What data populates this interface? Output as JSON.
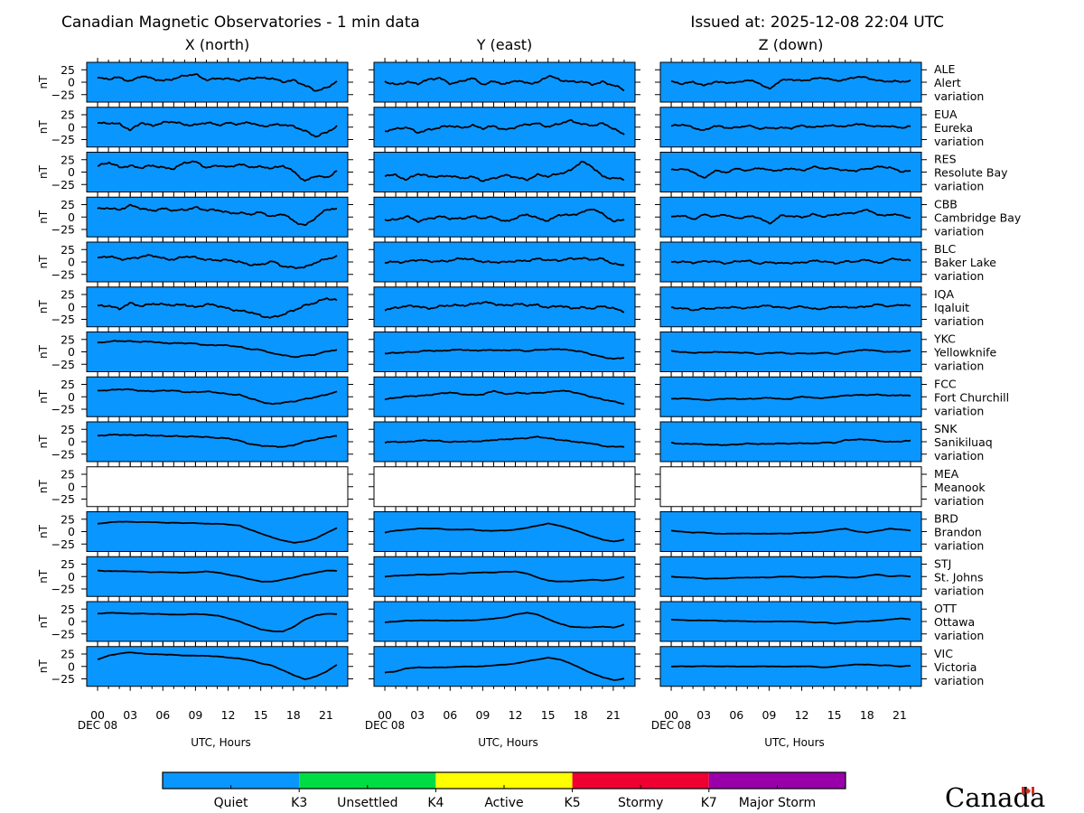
{
  "title_left": "Canadian Magnetic Observatories - 1 min data",
  "title_right": "Issued at: 2025-12-08 22:04 UTC",
  "columns": [
    "X (north)",
    "Y (east)",
    "Z (down)"
  ],
  "y_tick_labels": [
    "25",
    "0",
    "−25"
  ],
  "y_unit": "nT",
  "x_tick_labels": [
    "00",
    "03",
    "06",
    "09",
    "12",
    "15",
    "18",
    "21"
  ],
  "x_date_label": "DEC 08",
  "x_axis_label": "UTC, Hours",
  "variation_word": "variation",
  "colors": {
    "quiet": "#0a96ff",
    "unsettled": "#00dd44",
    "active": "#ffff00",
    "stormy": "#ee0033",
    "major_storm": "#9900aa",
    "trace": "#000000"
  },
  "legend": {
    "segments": [
      {
        "label": "Quiet",
        "color": "#0a96ff"
      },
      {
        "label": "Unsettled",
        "color": "#00dd44"
      },
      {
        "label": "Active",
        "color": "#ffff00"
      },
      {
        "label": "Stormy",
        "color": "#ee0033"
      },
      {
        "label": "Major Storm",
        "color": "#9900aa"
      }
    ],
    "thresholds": [
      "K3",
      "K4",
      "K5",
      "K7"
    ]
  },
  "logo_text": "Canada",
  "chart_data": {
    "type": "line",
    "x_unit": "UTC hours",
    "xlim": [
      -1,
      23
    ],
    "ylim": [
      -40,
      40
    ],
    "yticks": [
      25,
      0,
      -25
    ],
    "data_end_hour": 22.07,
    "stations": [
      {
        "code": "ALE",
        "name": "Alert",
        "status": "quiet",
        "x_nt": [
          8,
          5,
          10,
          3,
          12,
          6,
          4,
          8,
          12,
          15,
          6,
          8,
          5,
          4,
          10,
          8,
          6,
          2,
          5,
          -8,
          -18,
          -10,
          4
        ],
        "y_nt": [
          0,
          -5,
          2,
          -4,
          4,
          10,
          -2,
          0,
          8,
          -3,
          2,
          -6,
          4,
          0,
          -2,
          12,
          6,
          2,
          0,
          -5,
          2,
          -6,
          -18
        ],
        "z_nt": [
          2,
          -2,
          0,
          -8,
          2,
          0,
          -2,
          4,
          0,
          -14,
          2,
          6,
          4,
          6,
          8,
          4,
          6,
          10,
          8,
          4,
          2,
          0,
          2
        ]
      },
      {
        "code": "EUA",
        "name": "Eureka",
        "status": "quiet",
        "x_nt": [
          8,
          10,
          6,
          -8,
          10,
          4,
          8,
          10,
          6,
          5,
          8,
          4,
          10,
          6,
          8,
          2,
          6,
          4,
          0,
          -6,
          -18,
          -12,
          2
        ],
        "y_nt": [
          -6,
          -4,
          -2,
          -10,
          -4,
          -2,
          2,
          0,
          4,
          -4,
          2,
          -4,
          0,
          4,
          8,
          2,
          6,
          12,
          8,
          4,
          6,
          -4,
          -14
        ],
        "z_nt": [
          2,
          4,
          0,
          -6,
          2,
          -2,
          0,
          4,
          -4,
          -2,
          0,
          -2,
          2,
          0,
          4,
          2,
          0,
          8,
          4,
          0,
          2,
          0,
          2
        ]
      },
      {
        "code": "RES",
        "name": "Resolute Bay",
        "status": "quiet",
        "x_nt": [
          12,
          18,
          10,
          14,
          8,
          12,
          10,
          8,
          18,
          20,
          10,
          14,
          8,
          16,
          12,
          10,
          6,
          14,
          2,
          -20,
          -8,
          -10,
          4
        ],
        "y_nt": [
          -8,
          -6,
          -14,
          -4,
          -10,
          -8,
          -6,
          -14,
          -10,
          -16,
          -12,
          -8,
          -10,
          -14,
          -6,
          -10,
          -2,
          4,
          20,
          10,
          -8,
          -12,
          -16
        ],
        "z_nt": [
          4,
          8,
          0,
          -14,
          4,
          0,
          6,
          2,
          10,
          4,
          2,
          8,
          4,
          10,
          6,
          8,
          4,
          2,
          6,
          12,
          10,
          0,
          2
        ]
      },
      {
        "code": "CBB",
        "name": "Cambridge Bay",
        "status": "quiet",
        "x_nt": [
          16,
          20,
          14,
          22,
          18,
          14,
          16,
          12,
          16,
          20,
          12,
          14,
          10,
          8,
          4,
          10,
          2,
          6,
          -10,
          -16,
          0,
          14,
          16
        ],
        "y_nt": [
          -4,
          -6,
          0,
          -8,
          -2,
          0,
          -4,
          -2,
          2,
          -4,
          0,
          -8,
          -2,
          4,
          -2,
          -6,
          4,
          2,
          10,
          18,
          4,
          -10,
          -2
        ],
        "z_nt": [
          0,
          2,
          -4,
          6,
          0,
          4,
          -2,
          2,
          -2,
          -14,
          4,
          2,
          -2,
          6,
          2,
          4,
          6,
          10,
          16,
          2,
          4,
          6,
          -4
        ]
      },
      {
        "code": "BLC",
        "name": "Baker Lake",
        "status": "quiet",
        "x_nt": [
          8,
          10,
          6,
          8,
          10,
          12,
          8,
          6,
          10,
          8,
          6,
          4,
          2,
          0,
          -4,
          -6,
          0,
          -8,
          -10,
          -12,
          -2,
          8,
          12
        ],
        "y_nt": [
          -2,
          0,
          2,
          4,
          0,
          2,
          4,
          6,
          4,
          2,
          0,
          -2,
          2,
          4,
          6,
          2,
          4,
          8,
          6,
          4,
          8,
          -4,
          -8
        ],
        "z_nt": [
          0,
          2,
          -2,
          0,
          2,
          -2,
          0,
          2,
          -2,
          0,
          -4,
          -2,
          0,
          2,
          0,
          -2,
          2,
          0,
          4,
          -2,
          6,
          4,
          2
        ]
      },
      {
        "code": "IQA",
        "name": "Iqaluit",
        "status": "quiet",
        "x_nt": [
          2,
          4,
          -4,
          6,
          2,
          8,
          4,
          2,
          6,
          0,
          4,
          2,
          -2,
          -8,
          -12,
          -18,
          -20,
          -16,
          -8,
          4,
          10,
          16,
          12
        ],
        "y_nt": [
          -4,
          -2,
          0,
          2,
          -2,
          0,
          2,
          4,
          6,
          8,
          6,
          4,
          6,
          2,
          4,
          0,
          2,
          -4,
          0,
          -2,
          0,
          -4,
          -8
        ],
        "z_nt": [
          -2,
          -4,
          -6,
          -2,
          -4,
          -2,
          0,
          -2,
          0,
          2,
          0,
          -2,
          0,
          -4,
          -2,
          0,
          -2,
          0,
          2,
          4,
          0,
          6,
          2
        ]
      },
      {
        "code": "YKC",
        "name": "Yellowknife",
        "status": "quiet",
        "x_nt": [
          18,
          20,
          22,
          22,
          20,
          20,
          18,
          18,
          17,
          16,
          14,
          14,
          12,
          10,
          6,
          4,
          -4,
          -6,
          -10,
          -8,
          -6,
          2,
          4
        ],
        "y_nt": [
          -4,
          -2,
          0,
          0,
          2,
          2,
          4,
          4,
          2,
          4,
          4,
          2,
          4,
          2,
          4,
          4,
          6,
          4,
          0,
          -6,
          -10,
          -14,
          -12
        ],
        "z_nt": [
          2,
          0,
          -2,
          -2,
          0,
          0,
          -2,
          -2,
          -4,
          -2,
          -2,
          -4,
          -2,
          -4,
          -2,
          -4,
          0,
          2,
          4,
          2,
          0,
          0,
          2
        ]
      },
      {
        "code": "FCC",
        "name": "Fort Churchill",
        "status": "quiet",
        "x_nt": [
          12,
          14,
          15,
          14,
          12,
          12,
          12,
          12,
          10,
          10,
          10,
          8,
          6,
          4,
          -4,
          -10,
          -14,
          -12,
          -10,
          -4,
          0,
          4,
          10
        ],
        "y_nt": [
          -4,
          -2,
          0,
          2,
          4,
          6,
          8,
          6,
          4,
          4,
          12,
          6,
          8,
          6,
          8,
          10,
          12,
          10,
          6,
          0,
          -6,
          -10,
          -14
        ],
        "z_nt": [
          -4,
          -4,
          -4,
          -6,
          -6,
          -4,
          -4,
          -4,
          -4,
          -2,
          -4,
          -4,
          0,
          -2,
          -2,
          0,
          2,
          4,
          4,
          4,
          2,
          4,
          2
        ]
      },
      {
        "code": "SNK",
        "name": "Sanikiluaq",
        "status": "quiet",
        "x_nt": [
          12,
          13,
          14,
          14,
          13,
          12,
          12,
          12,
          10,
          10,
          10,
          8,
          6,
          2,
          -4,
          -8,
          -10,
          -10,
          -6,
          0,
          4,
          10,
          12
        ],
        "y_nt": [
          -2,
          0,
          0,
          2,
          2,
          2,
          0,
          0,
          0,
          2,
          4,
          4,
          6,
          8,
          10,
          6,
          4,
          2,
          -2,
          -4,
          -8,
          -10,
          -10
        ],
        "z_nt": [
          -2,
          -4,
          -4,
          -6,
          -6,
          -6,
          -6,
          -4,
          -4,
          -4,
          -4,
          -4,
          -2,
          -4,
          -2,
          -2,
          4,
          4,
          4,
          2,
          0,
          0,
          2
        ]
      },
      {
        "code": "MEA",
        "name": "Meanook",
        "status": "nodata",
        "x_nt": [],
        "y_nt": [],
        "z_nt": []
      },
      {
        "code": "BRD",
        "name": "Brandon",
        "status": "quiet",
        "x_nt": [
          16,
          18,
          20,
          20,
          19,
          19,
          18,
          18,
          17,
          17,
          16,
          16,
          14,
          12,
          4,
          -4,
          -12,
          -18,
          -22,
          -20,
          -14,
          -2,
          8
        ],
        "y_nt": [
          -2,
          2,
          4,
          6,
          6,
          6,
          4,
          4,
          4,
          2,
          2,
          2,
          4,
          8,
          12,
          16,
          12,
          6,
          -2,
          -10,
          -16,
          -20,
          -16
        ],
        "z_nt": [
          2,
          0,
          -2,
          -2,
          -4,
          -4,
          -4,
          -4,
          -4,
          -4,
          -4,
          -4,
          -2,
          -2,
          0,
          4,
          6,
          0,
          -2,
          2,
          6,
          4,
          2
        ]
      },
      {
        "code": "STJ",
        "name": "St. Johns",
        "status": "quiet",
        "x_nt": [
          12,
          11,
          11,
          10,
          10,
          9,
          9,
          8,
          8,
          9,
          10,
          8,
          4,
          0,
          -6,
          -10,
          -10,
          -6,
          -2,
          4,
          8,
          12,
          11
        ],
        "y_nt": [
          0,
          2,
          2,
          4,
          4,
          4,
          6,
          6,
          8,
          8,
          8,
          10,
          10,
          6,
          -2,
          -8,
          -10,
          -10,
          -8,
          -6,
          -8,
          -6,
          0
        ],
        "z_nt": [
          0,
          -2,
          -2,
          -4,
          -4,
          -4,
          -2,
          -2,
          -2,
          -2,
          0,
          0,
          -2,
          -2,
          0,
          0,
          -2,
          -2,
          2,
          4,
          0,
          2,
          0
        ]
      },
      {
        "code": "OTT",
        "name": "Ottawa",
        "status": "quiet",
        "x_nt": [
          16,
          17,
          17,
          16,
          16,
          15,
          15,
          14,
          14,
          15,
          14,
          12,
          6,
          0,
          -8,
          -16,
          -20,
          -20,
          -10,
          4,
          12,
          16,
          15
        ],
        "y_nt": [
          -2,
          0,
          2,
          2,
          2,
          2,
          2,
          2,
          2,
          4,
          6,
          8,
          14,
          18,
          14,
          4,
          -4,
          -10,
          -12,
          -12,
          -10,
          -12,
          -6
        ],
        "z_nt": [
          4,
          3,
          2,
          2,
          2,
          1,
          1,
          0,
          0,
          0,
          0,
          0,
          0,
          -2,
          -2,
          -4,
          -2,
          0,
          0,
          2,
          4,
          6,
          4
        ]
      },
      {
        "code": "VIC",
        "name": "Victoria",
        "status": "quiet",
        "x_nt": [
          14,
          22,
          26,
          28,
          26,
          25,
          24,
          23,
          22,
          22,
          21,
          20,
          18,
          16,
          12,
          6,
          2,
          -8,
          -18,
          -26,
          -20,
          -10,
          4
        ],
        "y_nt": [
          -12,
          -10,
          -4,
          -2,
          -2,
          -2,
          -2,
          0,
          0,
          0,
          2,
          4,
          6,
          10,
          14,
          18,
          14,
          6,
          -4,
          -14,
          -22,
          -28,
          -24
        ],
        "z_nt": [
          0,
          0,
          0,
          1,
          0,
          0,
          0,
          0,
          0,
          0,
          0,
          0,
          0,
          0,
          -2,
          0,
          2,
          4,
          4,
          2,
          2,
          0,
          2
        ]
      }
    ]
  }
}
